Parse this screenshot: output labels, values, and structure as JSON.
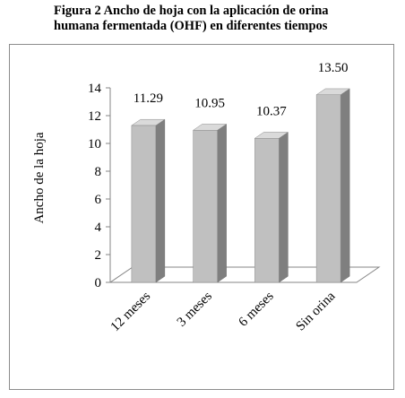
{
  "caption": {
    "line1": "Figura 2 Ancho de hoja con la aplicación de orina",
    "line2": "humana fermentada (OHF) en diferentes tiempos"
  },
  "chart_data": {
    "type": "bar",
    "categories": [
      "12 meses",
      "3 meses",
      "6 meses",
      "Sin orina"
    ],
    "values": [
      11.29,
      10.95,
      10.37,
      13.5
    ],
    "value_labels": [
      "11.29",
      "10.95",
      "10.37",
      "13.50"
    ],
    "title": "",
    "xlabel": "",
    "ylabel": "Ancho de la hoja",
    "ylim": [
      0,
      14
    ],
    "yticks": [
      0,
      2,
      4,
      6,
      8,
      10,
      12,
      14
    ],
    "grid": false,
    "legend": "none",
    "style": "3d",
    "colors": {
      "bar_front": "#c0c0c0",
      "bar_side": "#7f7f7f",
      "bar_top": "#dadada",
      "axis": "#868686"
    }
  }
}
